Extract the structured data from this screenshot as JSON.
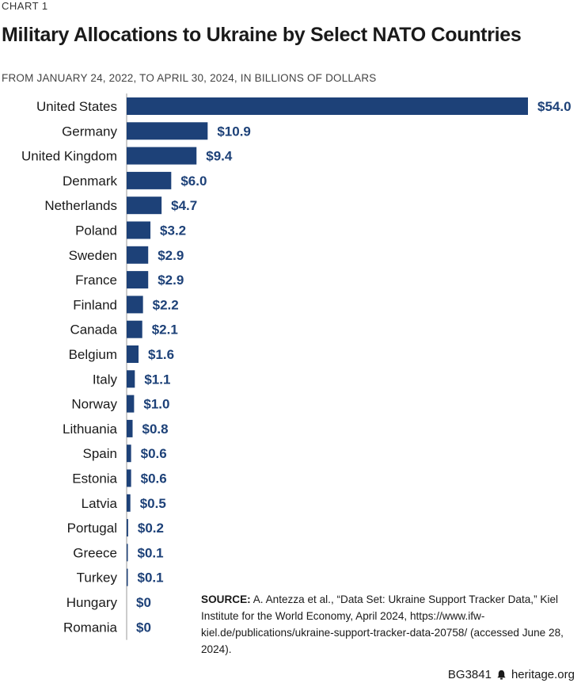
{
  "header": {
    "chart_number": "CHART 1",
    "title": "Military Allocations to Ukraine by Select NATO Countries",
    "subtitle": "FROM JANUARY 24, 2022, TO APRIL 30, 2024, IN BILLIONS OF DOLLARS"
  },
  "chart_data": {
    "type": "bar",
    "orientation": "horizontal",
    "title": "Military Allocations to Ukraine by Select NATO Countries",
    "subtitle": "FROM JANUARY 24, 2022, TO APRIL 30, 2024, IN BILLIONS OF DOLLARS",
    "categories": [
      "United States",
      "Germany",
      "United Kingdom",
      "Denmark",
      "Netherlands",
      "Poland",
      "Sweden",
      "France",
      "Finland",
      "Canada",
      "Belgium",
      "Italy",
      "Norway",
      "Lithuania",
      "Spain",
      "Estonia",
      "Latvia",
      "Portugal",
      "Greece",
      "Turkey",
      "Hungary",
      "Romania"
    ],
    "values": [
      54.0,
      10.9,
      9.4,
      6.0,
      4.7,
      3.2,
      2.9,
      2.9,
      2.2,
      2.1,
      1.6,
      1.1,
      1.0,
      0.8,
      0.6,
      0.6,
      0.5,
      0.2,
      0.1,
      0.1,
      0,
      0
    ],
    "value_labels": [
      "$54.0",
      "$10.9",
      "$9.4",
      "$6.0",
      "$4.7",
      "$3.2",
      "$2.9",
      "$2.9",
      "$2.2",
      "$2.1",
      "$1.6",
      "$1.1",
      "$1.0",
      "$0.8",
      "$0.6",
      "$0.6",
      "$0.5",
      "$0.2",
      "$0.1",
      "$0.1",
      "$0",
      "$0"
    ],
    "xlim": [
      0,
      54
    ],
    "bar_color": "#1d4178",
    "grid": false
  },
  "source": {
    "label": "SOURCE:",
    "text": " A. Antezza et al., “Data Set: Ukraine Support Tracker Data,” Kiel Institute for the World Economy, April 2024, https://www.ifw-kiel.de/publications/ukraine-support-tracker-data-20758/ (accessed June 28, 2024)."
  },
  "footer": {
    "code": "BG3841",
    "site": "heritage.org",
    "icon": "bell-icon"
  }
}
